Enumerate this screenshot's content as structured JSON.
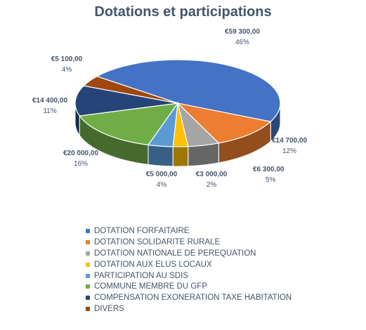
{
  "chart_data": {
    "type": "pie",
    "title": "Dotations et participations",
    "slices": [
      {
        "label": "DOTATION FORFAITAIRE",
        "value": 59300,
        "value_label": "€59 300,00",
        "percent_label": "46%",
        "color": "#4472c4"
      },
      {
        "label": "DOTATION SOLIDARITE RURALE",
        "value": 14700,
        "value_label": "€14 700,00",
        "percent_label": "12%",
        "color": "#ed7d31"
      },
      {
        "label": "DOTATION NATIONALE DE PEREQUATION",
        "value": 6300,
        "value_label": "€6 300,00",
        "percent_label": "5%",
        "color": "#a5a5a5"
      },
      {
        "label": "DOTATION AUX ELUS LOCAUX",
        "value": 3000,
        "value_label": "€3 000,00",
        "percent_label": "2%",
        "color": "#ffc000"
      },
      {
        "label": "PARTICIPATION AU SDIS",
        "value": 5000,
        "value_label": "€5 000,00",
        "percent_label": "4%",
        "color": "#5b9bd5"
      },
      {
        "label": "COMMUNE MEMBRE DU GFP",
        "value": 20000,
        "value_label": "€20 000,00",
        "percent_label": "16%",
        "color": "#70ad47"
      },
      {
        "label": "COMPENSATION EXONERATION TAXE HABITATION",
        "value": 14400,
        "value_label": "€14 400,00",
        "percent_label": "11%",
        "color": "#264478"
      },
      {
        "label": "DIVERS",
        "value": 5100,
        "value_label": "€5 100,00",
        "percent_label": "4%",
        "color": "#9e480e"
      }
    ],
    "legend_position": "bottom",
    "style": "3d"
  }
}
